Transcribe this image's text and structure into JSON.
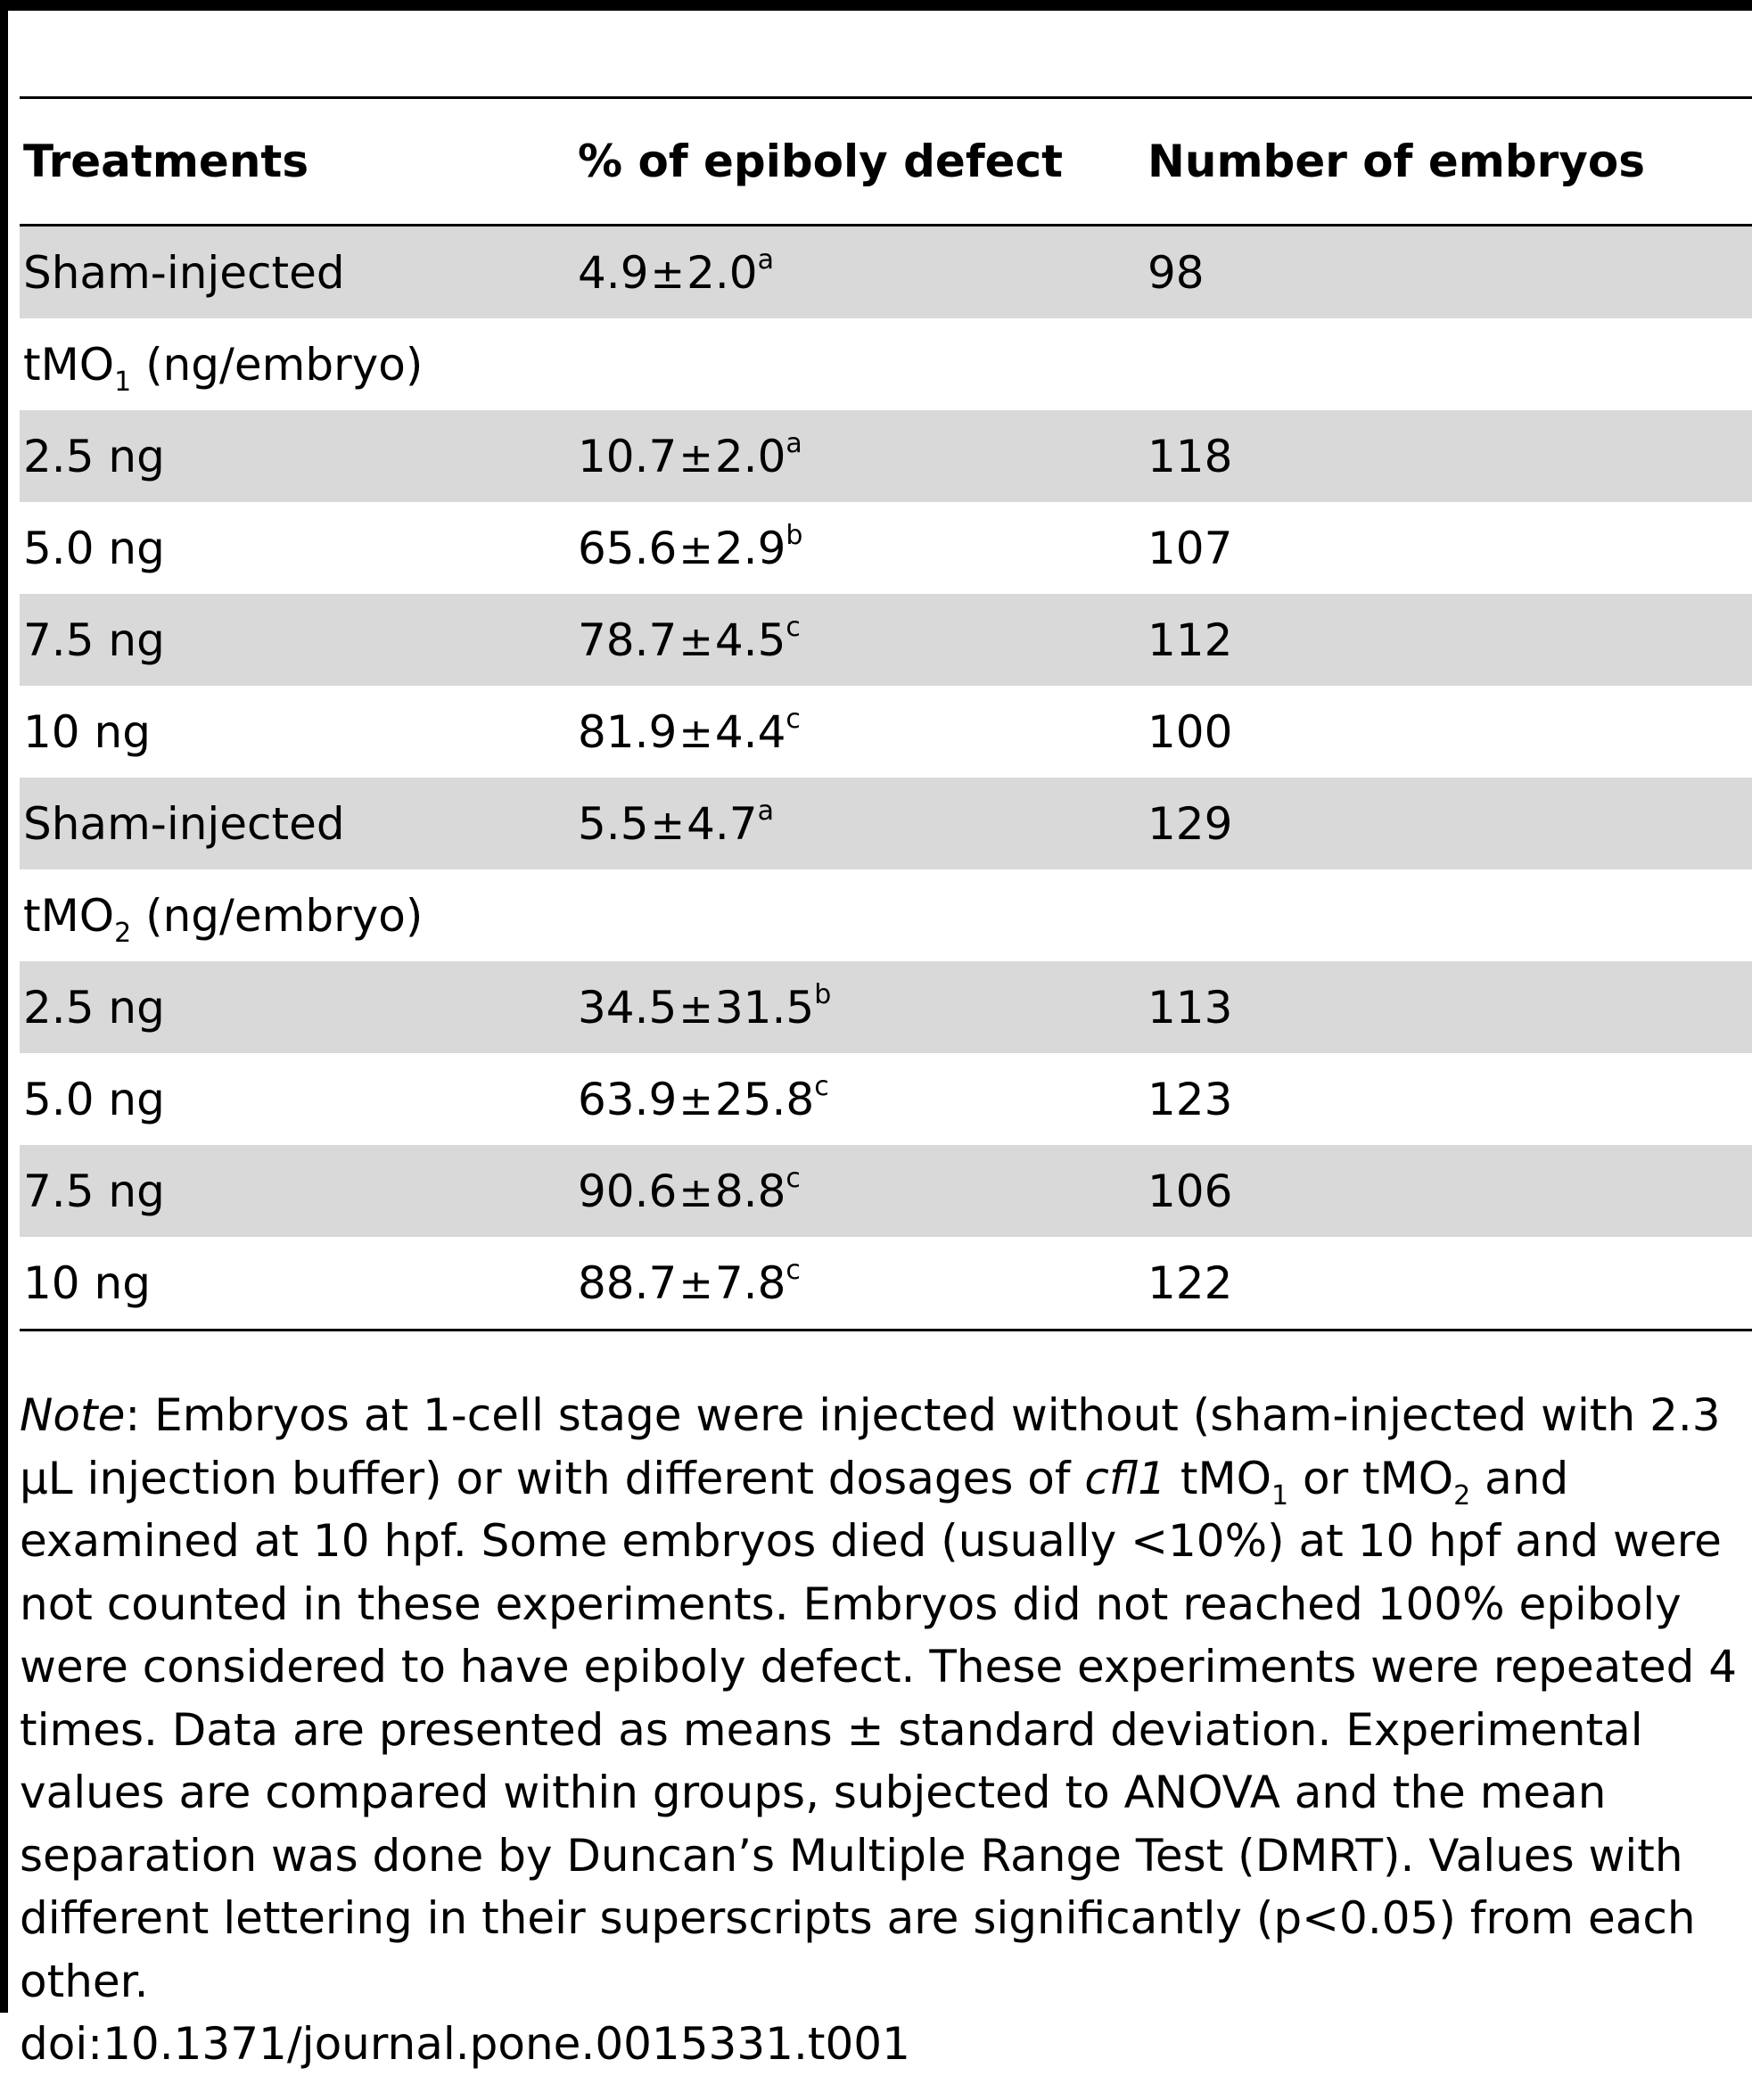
{
  "table": {
    "headers": [
      "Treatments",
      "% of epiboly defect",
      "Number of embryos"
    ],
    "rows": [
      {
        "treatment": "Sham-injected",
        "mean": "4.9",
        "pm": "±",
        "sd": "2.0",
        "sup": "a",
        "n": "98",
        "shaded": true
      },
      {
        "group_base": "tMO",
        "group_sub": "1",
        "group_suffix": "(ng/embryo)",
        "is_group": true,
        "shaded": false
      },
      {
        "treatment": "2.5 ng",
        "mean": "10.7",
        "pm": "±",
        "sd": "2.0",
        "sup": "a",
        "n": "118",
        "shaded": true
      },
      {
        "treatment": "5.0 ng",
        "mean": "65.6",
        "pm": "±",
        "sd": "2.9",
        "sup": "b",
        "n": "107",
        "shaded": false
      },
      {
        "treatment": "7.5 ng",
        "mean": "78.7",
        "pm": "±",
        "sd": "4.5",
        "sup": "c",
        "n": "112",
        "shaded": true
      },
      {
        "treatment": "10 ng",
        "mean": "81.9",
        "pm": "±",
        "sd": "4.4",
        "sup": "c",
        "n": "100",
        "shaded": false
      },
      {
        "treatment": "Sham-injected",
        "mean": "5.5",
        "pm": "±",
        "sd": "4.7",
        "sup": "a",
        "n": "129",
        "shaded": true
      },
      {
        "group_base": "tMO",
        "group_sub": "2",
        "group_suffix": "(ng/embryo)",
        "is_group": true,
        "shaded": false
      },
      {
        "treatment": "2.5 ng",
        "mean": "34.5",
        "pm": "±",
        "sd": "31.5",
        "sup": "b",
        "n": "113",
        "shaded": true
      },
      {
        "treatment": "5.0 ng",
        "mean": "63.9",
        "pm": "±",
        "sd": "25.8",
        "sup": "c",
        "n": "123",
        "shaded": false
      },
      {
        "treatment": "7.5 ng",
        "mean": "90.6",
        "pm": "±",
        "sd": "8.8",
        "sup": "c",
        "n": "106",
        "shaded": true
      },
      {
        "treatment": "10 ng",
        "mean": "88.7",
        "pm": "±",
        "sd": "7.8",
        "sup": "c",
        "n": "122",
        "shaded": false
      }
    ]
  },
  "note": {
    "label": "Note",
    "p1": ": Embryos at 1-cell stage were injected without (sham-injected with 2.3 μL injection buffer) or with different dosages of ",
    "gene": "cfl1",
    "p2": " tMO",
    "sub1": "1",
    "p3": " or tMO",
    "sub2": "2",
    "p4": " and examined at 10 hpf. Some embryos died (usually <10%) at 10 hpf and were not counted in these experiments. Embryos did not reached 100% epiboly were considered to have epiboly defect. These experiments were repeated 4 times. Data are presented as means ± standard deviation. Experimental values are compared within groups, subjected to ANOVA and the mean separation was done by Duncan’s Multiple Range Test (DMRT). Values with different lettering in their superscripts are significantly (p<0.05) from each other.",
    "doi": "doi:10.1371/journal.pone.0015331.t001"
  },
  "colors": {
    "rule": "#000000",
    "shade": "#d9d9d9",
    "background": "#ffffff"
  }
}
